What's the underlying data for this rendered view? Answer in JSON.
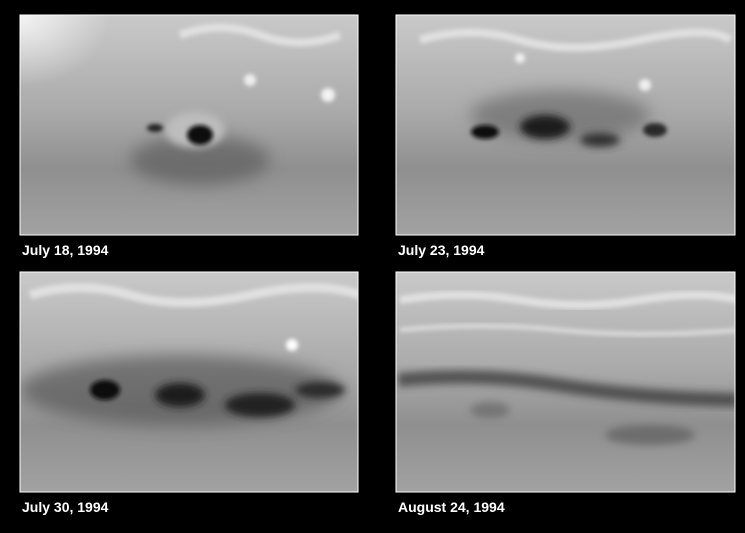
{
  "panels": [
    {
      "caption": "July 18, 1994"
    },
    {
      "caption": "July 23, 1994"
    },
    {
      "caption": "July 30, 1994"
    },
    {
      "caption": "August 24, 1994"
    }
  ]
}
